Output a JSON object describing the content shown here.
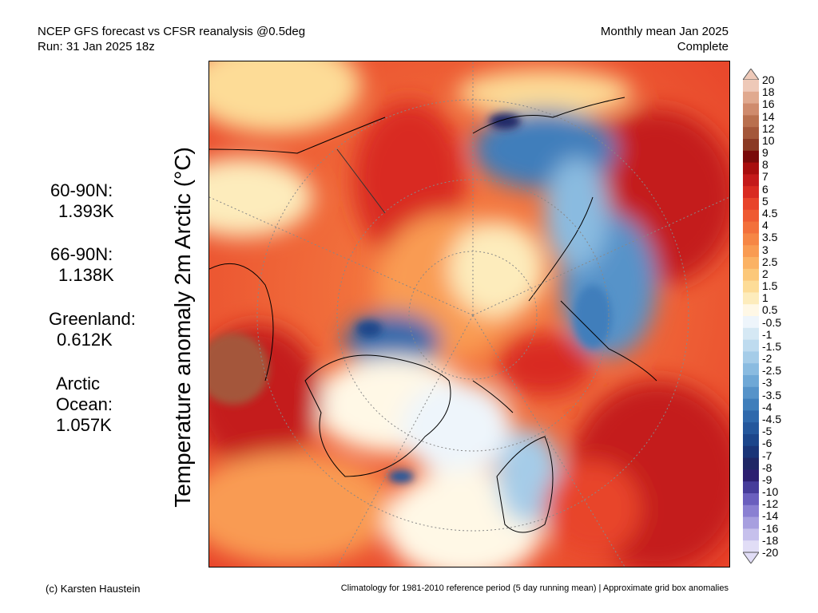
{
  "header": {
    "line1_left": "NCEP GFS forecast vs CFSR reanalysis @0.5deg",
    "line2_left": "Run: 31 Jan 2025 18z",
    "line1_right": "Monthly mean Jan 2025",
    "line2_right": "Complete"
  },
  "y_axis_title": "Temperature anomaly 2m Arctic (°C)",
  "stats": [
    {
      "label": "60-90N:",
      "value": "1.393K"
    },
    {
      "label": "66-90N:",
      "value": "1.138K"
    },
    {
      "label": "Greenland:",
      "value": "0.612K"
    },
    {
      "label": "Arctic Ocean:",
      "value": "1.057K",
      "label_lines": [
        "Arctic",
        "Ocean:"
      ]
    }
  ],
  "colorbar": {
    "labels": [
      "20",
      "18",
      "16",
      "14",
      "12",
      "10",
      "9",
      "8",
      "7",
      "6",
      "5",
      "4.5",
      "4",
      "3.5",
      "3",
      "2.5",
      "2",
      "1.5",
      "1",
      "0.5",
      "-0.5",
      "-1",
      "-1.5",
      "-2",
      "-2.5",
      "-3",
      "-3.5",
      "-4",
      "-4.5",
      "-5",
      "-6",
      "-7",
      "-8",
      "-9",
      "-10",
      "-12",
      "-14",
      "-16",
      "-18",
      "-20"
    ],
    "colors": [
      "#eec9b8",
      "#e0a98f",
      "#cf8b6d",
      "#b9704f",
      "#a4573a",
      "#8b3a24",
      "#7a0a0a",
      "#a80e0e",
      "#c41a1a",
      "#d92b21",
      "#e8442a",
      "#ef5a32",
      "#f3703b",
      "#f68645",
      "#f99b52",
      "#fbb264",
      "#fcc87a",
      "#fddc97",
      "#fdecbc",
      "#fff8e6",
      "#eef5fb",
      "#d5e8f4",
      "#bedbef",
      "#a5cce8",
      "#8abbe0",
      "#6fa8d6",
      "#5693c9",
      "#3f7ebb",
      "#2f69ac",
      "#24579c",
      "#1c468b",
      "#1a3578",
      "#1f2766",
      "#2d1f71",
      "#463c9a",
      "#6a5fbe",
      "#8a80d2",
      "#a79fdf",
      "#c6c0ec",
      "#e1ddf6"
    ]
  },
  "footer": {
    "left": "(c) Karsten Haustein",
    "right": "Climatology for 1981-2010 reference period (5 day running mean) | Approximate grid box anomalies"
  }
}
